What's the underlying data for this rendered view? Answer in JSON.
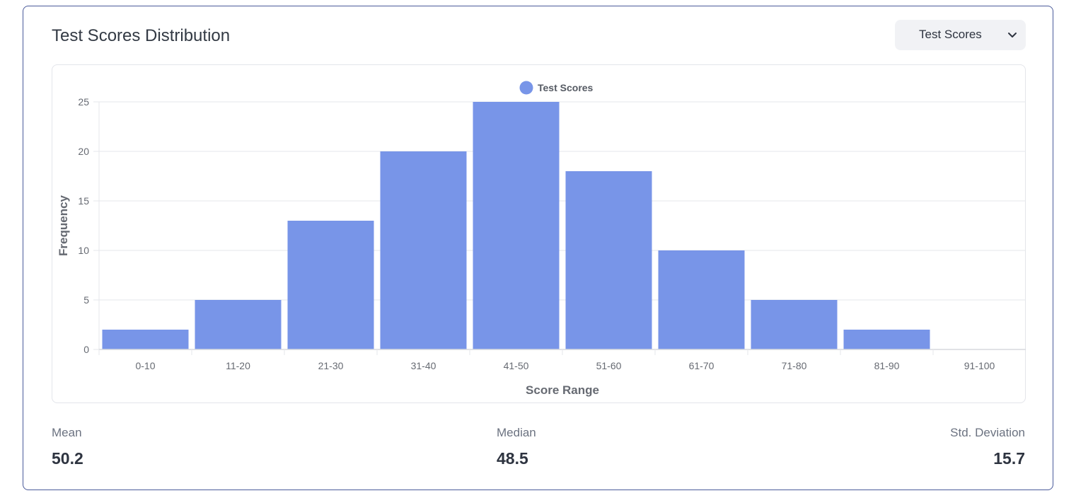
{
  "header": {
    "title": "Test Scores Distribution",
    "dataset_select": {
      "selected": "Test Scores"
    }
  },
  "chart_data": {
    "type": "bar",
    "categories": [
      "0-10",
      "11-20",
      "21-30",
      "31-40",
      "41-50",
      "51-60",
      "61-70",
      "71-80",
      "81-90",
      "91-100"
    ],
    "series": [
      {
        "name": "Test Scores",
        "values": [
          2,
          5,
          13,
          20,
          25,
          18,
          10,
          5,
          2,
          0
        ],
        "color": "#7895e8"
      }
    ],
    "xlabel": "Score Range",
    "ylabel": "Frequency",
    "ylim": [
      0,
      25
    ],
    "yticks": [
      0,
      5,
      10,
      15,
      20,
      25
    ],
    "grid": true,
    "legend_position": "top"
  },
  "stats": {
    "mean": {
      "label": "Mean",
      "value": "50.2"
    },
    "median": {
      "label": "Median",
      "value": "48.5"
    },
    "std": {
      "label": "Std. Deviation",
      "value": "15.7"
    }
  }
}
